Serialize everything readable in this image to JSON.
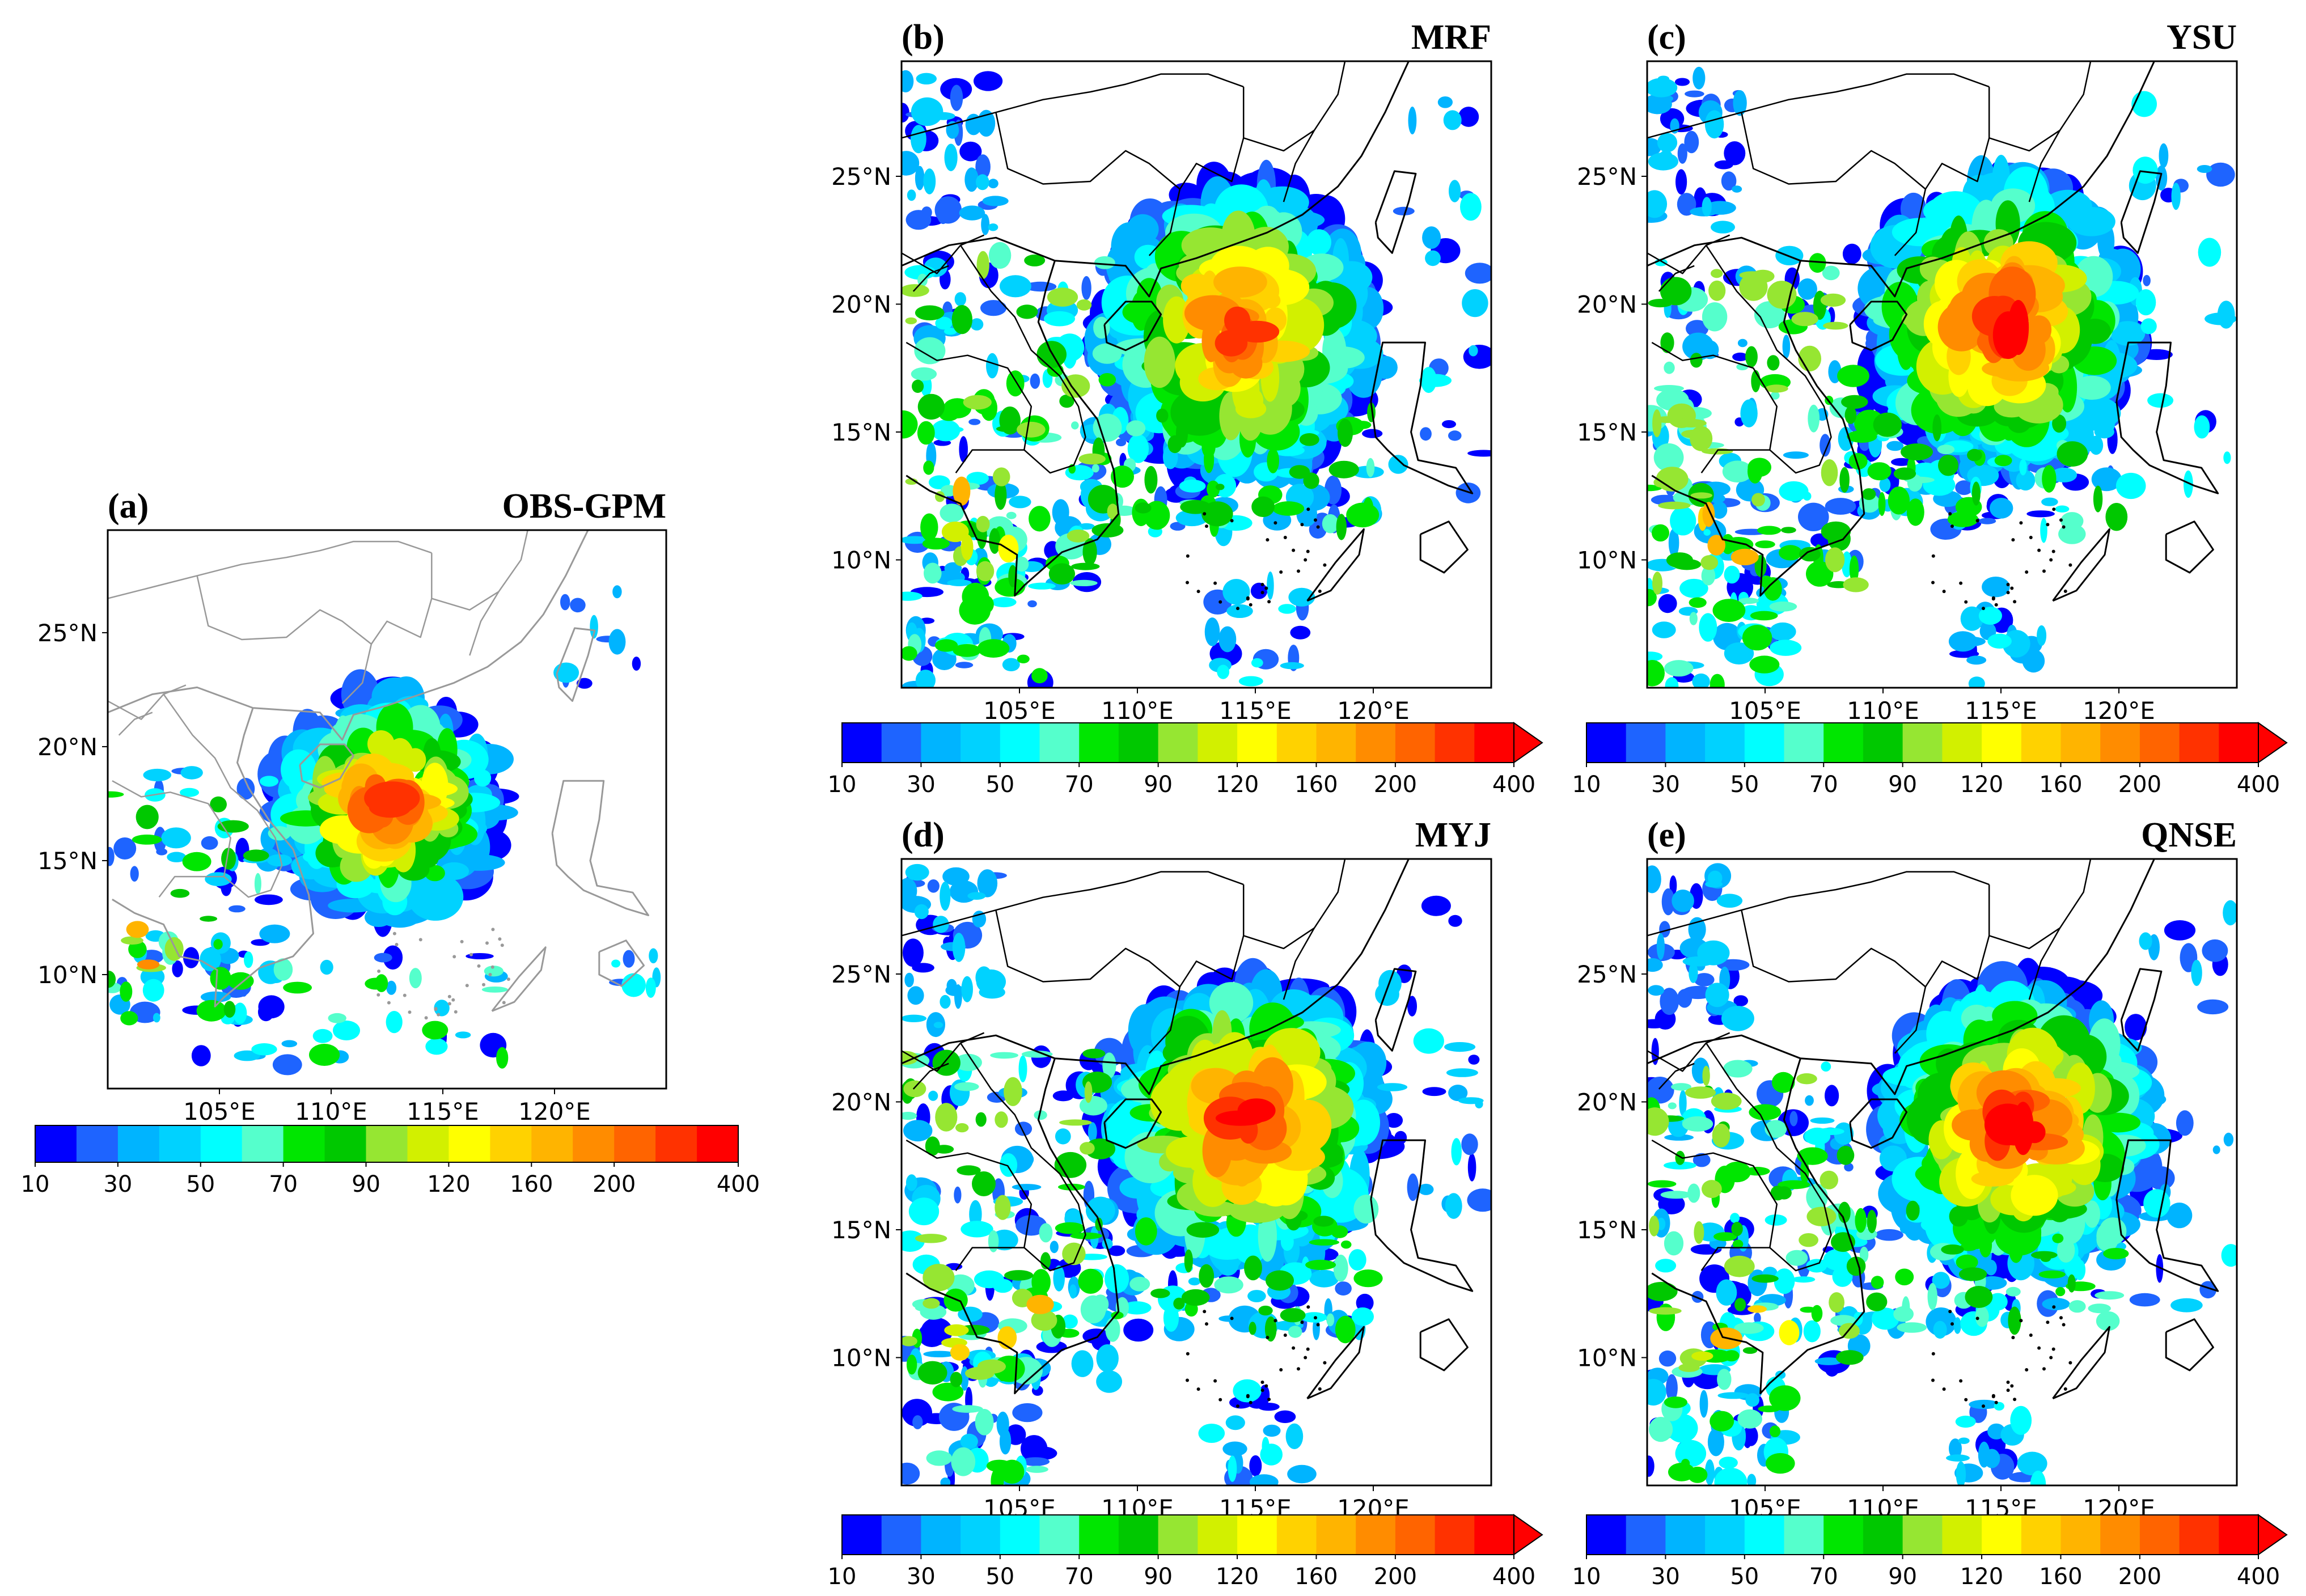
{
  "figure": {
    "colorbar": {
      "colors": [
        "#0000ff",
        "#1e64ff",
        "#00b4ff",
        "#00d2ff",
        "#00ffff",
        "#55ffcc",
        "#00e600",
        "#00c800",
        "#96e632",
        "#d2f000",
        "#ffff00",
        "#ffd200",
        "#ffb400",
        "#ff8c00",
        "#ff6400",
        "#ff3200",
        "#ff0000"
      ],
      "arrow_color": "#ff0000",
      "ticks": [
        "10",
        "30",
        "50",
        "70",
        "90",
        "120",
        "160",
        "200",
        "400"
      ]
    },
    "lat_labels": [
      "25°N",
      "20°N",
      "15°N",
      "10°N"
    ],
    "lon_labels": [
      "105°E",
      "110°E",
      "115°E",
      "120°E"
    ],
    "panels": [
      {
        "id": "a",
        "label": "(a)",
        "title": "OBS-GPM",
        "coast_color": "#999999"
      },
      {
        "id": "b",
        "label": "(b)",
        "title": "MRF",
        "coast_color": "#000000"
      },
      {
        "id": "c",
        "label": "(c)",
        "title": "YSU",
        "coast_color": "#000000"
      },
      {
        "id": "d",
        "label": "(d)",
        "title": "MYJ",
        "coast_color": "#000000"
      },
      {
        "id": "e",
        "label": "(e)",
        "title": "QNSE",
        "coast_color": "#000000"
      }
    ]
  }
}
